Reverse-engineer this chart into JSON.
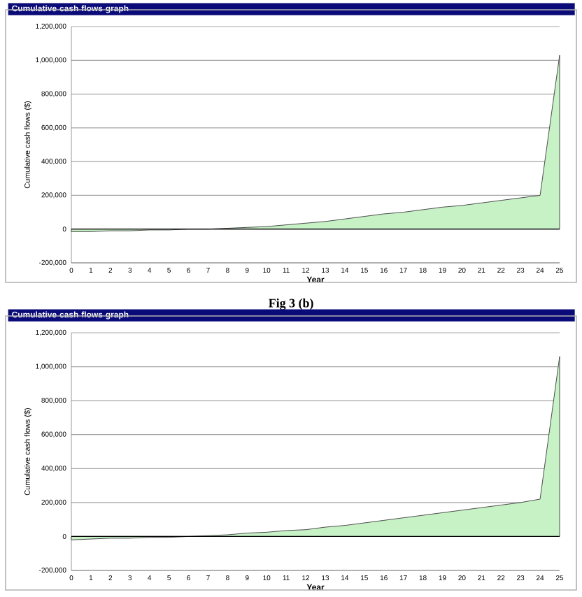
{
  "chart_data": [
    {
      "type": "area",
      "title": "Cumulative cash flows graph",
      "xlabel": "Year",
      "ylabel": "Cumulative cash flows ($)",
      "annotations": [
        "Fig 3 (b)"
      ],
      "x": [
        0,
        1,
        2,
        3,
        4,
        5,
        6,
        7,
        8,
        9,
        10,
        11,
        12,
        13,
        14,
        15,
        16,
        17,
        18,
        19,
        20,
        21,
        22,
        23,
        24,
        25
      ],
      "series": [
        {
          "color": "#c6f2c6",
          "values": [
            -15000,
            -15000,
            -10000,
            -10000,
            -5000,
            -5000,
            0,
            0,
            5000,
            10000,
            15000,
            25000,
            35000,
            45000,
            60000,
            75000,
            90000,
            100000,
            115000,
            130000,
            140000,
            155000,
            170000,
            185000,
            200000,
            1030000
          ]
        }
      ],
      "xlim": [
        0,
        25
      ],
      "xticks": [
        0,
        1,
        2,
        3,
        4,
        5,
        6,
        7,
        8,
        9,
        10,
        11,
        12,
        13,
        14,
        15,
        16,
        17,
        18,
        19,
        20,
        21,
        22,
        23,
        24,
        25
      ],
      "ylim": [
        -200000,
        1200000
      ],
      "yticks": [
        {
          "value": -200000,
          "label": "-200,000"
        },
        0,
        {
          "value": 200000,
          "label": "200,000"
        },
        {
          "value": 400000,
          "label": "400,000"
        },
        {
          "value": 600000,
          "label": "600,000"
        },
        {
          "value": 800000,
          "label": "800,000"
        },
        {
          "value": 1000000,
          "label": "1,000,000"
        },
        {
          "value": 1200000,
          "label": "1,200,000"
        }
      ],
      "grid": "y"
    },
    {
      "type": "area",
      "title": "Cumulative cash flows graph",
      "xlabel": "Year",
      "ylabel": "Cumulative cash flows ($)",
      "x": [
        0,
        1,
        2,
        3,
        4,
        5,
        6,
        7,
        8,
        9,
        10,
        11,
        12,
        13,
        14,
        15,
        16,
        17,
        18,
        19,
        20,
        21,
        22,
        23,
        24,
        25
      ],
      "series": [
        {
          "color": "#c6f2c6",
          "values": [
            -20000,
            -15000,
            -10000,
            -10000,
            -5000,
            -5000,
            0,
            5000,
            10000,
            20000,
            25000,
            35000,
            40000,
            55000,
            65000,
            80000,
            95000,
            110000,
            125000,
            140000,
            155000,
            170000,
            185000,
            200000,
            220000,
            1060000
          ]
        }
      ],
      "xlim": [
        0,
        25
      ],
      "xticks": [
        0,
        1,
        2,
        3,
        4,
        5,
        6,
        7,
        8,
        9,
        10,
        11,
        12,
        13,
        14,
        15,
        16,
        17,
        18,
        19,
        20,
        21,
        22,
        23,
        24,
        25
      ],
      "ylim": [
        -200000,
        1200000
      ],
      "yticks": [
        {
          "value": -200000,
          "label": "-200,000"
        },
        0,
        {
          "value": 200000,
          "label": "200,000"
        },
        {
          "value": 400000,
          "label": "400,000"
        },
        {
          "value": 600000,
          "label": "600,000"
        },
        {
          "value": 800000,
          "label": "800,000"
        },
        {
          "value": 1000000,
          "label": "1,000,000"
        },
        {
          "value": 1200000,
          "label": "1,200,000"
        }
      ],
      "grid": "y"
    }
  ]
}
